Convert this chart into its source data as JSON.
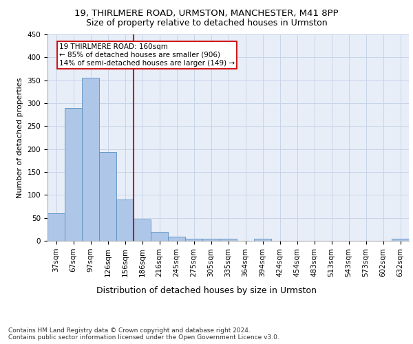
{
  "title1": "19, THIRLMERE ROAD, URMSTON, MANCHESTER, M41 8PP",
  "title2": "Size of property relative to detached houses in Urmston",
  "xlabel": "Distribution of detached houses by size in Urmston",
  "ylabel": "Number of detached properties",
  "footnote": "Contains HM Land Registry data © Crown copyright and database right 2024.\nContains public sector information licensed under the Open Government Licence v3.0.",
  "bar_labels": [
    "37sqm",
    "67sqm",
    "97sqm",
    "126sqm",
    "156sqm",
    "186sqm",
    "216sqm",
    "245sqm",
    "275sqm",
    "305sqm",
    "335sqm",
    "364sqm",
    "394sqm",
    "424sqm",
    "454sqm",
    "483sqm",
    "513sqm",
    "543sqm",
    "573sqm",
    "602sqm",
    "632sqm"
  ],
  "bar_values": [
    60,
    290,
    355,
    193,
    90,
    46,
    20,
    9,
    5,
    5,
    5,
    0,
    5,
    0,
    0,
    0,
    0,
    0,
    0,
    0,
    5
  ],
  "bar_color": "#aec6e8",
  "bar_edge_color": "#5a8fc0",
  "grid_color": "#c8d4e8",
  "background_color": "#e8eef8",
  "annotation_text": "19 THIRLMERE ROAD: 160sqm\n← 85% of detached houses are smaller (906)\n14% of semi-detached houses are larger (149) →",
  "property_line_x": 4.5,
  "ylim": [
    0,
    450
  ],
  "red_line_color": "#cc0000",
  "title1_fontsize": 9.5,
  "title2_fontsize": 9,
  "xlabel_fontsize": 9,
  "ylabel_fontsize": 8,
  "tick_fontsize": 7.5,
  "annotation_fontsize": 7.5,
  "footnote_fontsize": 6.5
}
